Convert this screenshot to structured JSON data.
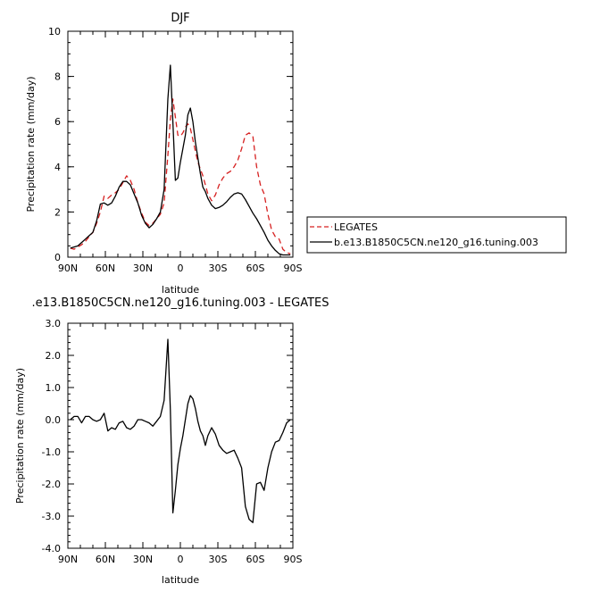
{
  "chart_data": [
    {
      "type": "line",
      "title": "DJF",
      "xlabel": "latitude",
      "ylabel": "Precipitation rate  (mm/day)",
      "xlim": [
        90,
        -90
      ],
      "ylim": [
        0,
        10
      ],
      "x_ticks": [
        90,
        60,
        30,
        0,
        -30,
        -60,
        -90
      ],
      "x_tick_labels": [
        "90N",
        "60N",
        "30N",
        "0",
        "30S",
        "60S",
        "90S"
      ],
      "y_ticks": [
        0,
        2,
        4,
        6,
        8,
        10
      ],
      "y_tick_labels": [
        "0",
        "2",
        "4",
        "6",
        "8",
        "10"
      ],
      "legend": {
        "placement": "right",
        "entries": [
          "LEGATES",
          "b.e13.B1850C5CN.ne120_g16.tuning.003"
        ]
      },
      "series": [
        {
          "name": "LEGATES",
          "color": "#d62020",
          "dash": "dashed",
          "x": [
            88,
            85,
            82,
            79,
            76,
            73,
            70,
            67,
            64,
            61,
            58,
            55,
            52,
            49,
            46,
            43,
            40,
            37,
            34,
            31,
            28,
            25,
            22,
            19,
            16,
            13,
            10,
            8,
            6,
            4,
            2,
            0,
            -2,
            -4,
            -6,
            -8,
            -10,
            -12,
            -14,
            -16,
            -18,
            -20,
            -22,
            -25,
            -28,
            -31,
            -34,
            -37,
            -40,
            -43,
            -46,
            -49,
            -52,
            -55,
            -58,
            -61,
            -64,
            -67,
            -70,
            -73,
            -76,
            -79,
            -82,
            -85,
            -88
          ],
          "y": [
            0.4,
            0.35,
            0.45,
            0.55,
            0.7,
            0.9,
            1.1,
            1.5,
            2.0,
            2.7,
            2.6,
            2.75,
            2.85,
            3.0,
            3.3,
            3.6,
            3.4,
            3.0,
            2.4,
            1.95,
            1.55,
            1.4,
            1.5,
            1.7,
            1.9,
            2.4,
            4.5,
            6.1,
            7.0,
            6.2,
            5.4,
            5.35,
            5.5,
            5.75,
            5.9,
            5.7,
            5.2,
            4.7,
            4.2,
            3.9,
            3.6,
            3.2,
            2.8,
            2.5,
            2.75,
            3.2,
            3.5,
            3.7,
            3.8,
            4.0,
            4.3,
            4.8,
            5.4,
            5.5,
            5.35,
            4.0,
            3.2,
            2.8,
            1.9,
            1.2,
            0.9,
            0.8,
            0.35,
            0.2,
            0.15
          ]
        },
        {
          "name": "b.e13.B1850C5CN.ne120_g16.tuning.003",
          "color": "#000000",
          "dash": "solid",
          "x": [
            88,
            85,
            82,
            79,
            76,
            73,
            70,
            67,
            64,
            61,
            58,
            55,
            52,
            49,
            46,
            43,
            40,
            37,
            34,
            31,
            28,
            25,
            22,
            19,
            16,
            13,
            10,
            8,
            6,
            4,
            2,
            0,
            -2,
            -4,
            -6,
            -8,
            -10,
            -12,
            -14,
            -16,
            -18,
            -20,
            -22,
            -25,
            -28,
            -31,
            -34,
            -37,
            -40,
            -43,
            -46,
            -49,
            -52,
            -55,
            -58,
            -61,
            -64,
            -67,
            -70,
            -73,
            -76,
            -79,
            -82,
            -85,
            -88
          ],
          "y": [
            0.4,
            0.45,
            0.5,
            0.65,
            0.8,
            0.95,
            1.1,
            1.6,
            2.35,
            2.4,
            2.3,
            2.4,
            2.7,
            3.1,
            3.35,
            3.35,
            3.2,
            2.8,
            2.4,
            1.85,
            1.5,
            1.3,
            1.45,
            1.7,
            2.0,
            3.0,
            7.0,
            8.5,
            6.0,
            3.4,
            3.5,
            4.2,
            4.8,
            5.4,
            6.3,
            6.6,
            6.0,
            5.1,
            4.4,
            3.7,
            3.1,
            2.9,
            2.6,
            2.3,
            2.15,
            2.2,
            2.3,
            2.45,
            2.65,
            2.8,
            2.85,
            2.8,
            2.55,
            2.25,
            1.95,
            1.7,
            1.4,
            1.1,
            0.75,
            0.5,
            0.3,
            0.15,
            0.1,
            0.1,
            0.1
          ]
        }
      ]
    },
    {
      "type": "line",
      "title": ".e13.B1850C5CN.ne120_g16.tuning.003  -  LEGATES",
      "xlabel": "latitude",
      "ylabel": "Precipitation rate  (mm/day)",
      "xlim": [
        90,
        -90
      ],
      "ylim": [
        -4,
        3
      ],
      "x_ticks": [
        90,
        60,
        30,
        0,
        -30,
        -60,
        -90
      ],
      "x_tick_labels": [
        "90N",
        "60N",
        "30N",
        "0",
        "30S",
        "60S",
        "90S"
      ],
      "y_ticks": [
        -4,
        -3,
        -2,
        -1,
        0,
        1,
        2,
        3
      ],
      "y_tick_labels": [
        "-4.0",
        "-3.0",
        "-2.0",
        "-1.0",
        "0.0",
        "1.0",
        "2.0",
        "3.0"
      ],
      "series": [
        {
          "color": "#000000",
          "dash": "solid",
          "x": [
            88,
            85,
            82,
            79,
            76,
            73,
            70,
            67,
            64,
            61,
            58,
            55,
            52,
            49,
            46,
            43,
            40,
            37,
            34,
            31,
            28,
            25,
            22,
            19,
            16,
            13,
            10,
            8,
            6,
            4,
            2,
            0,
            -2,
            -4,
            -6,
            -8,
            -10,
            -12,
            -14,
            -16,
            -18,
            -20,
            -22,
            -25,
            -28,
            -31,
            -34,
            -37,
            -40,
            -43,
            -46,
            -49,
            -52,
            -55,
            -58,
            -61,
            -64,
            -67,
            -70,
            -73,
            -76,
            -79,
            -82,
            -85,
            -88
          ],
          "y": [
            0.0,
            0.1,
            0.1,
            -0.1,
            0.1,
            0.1,
            0.0,
            -0.05,
            0.0,
            0.2,
            -0.35,
            -0.25,
            -0.3,
            -0.1,
            -0.05,
            -0.25,
            -0.3,
            -0.2,
            0.0,
            0.0,
            -0.05,
            -0.1,
            -0.2,
            -0.05,
            0.1,
            0.6,
            2.5,
            0.3,
            -2.9,
            -2.2,
            -1.4,
            -0.9,
            -0.5,
            0.0,
            0.5,
            0.75,
            0.65,
            0.35,
            -0.05,
            -0.35,
            -0.5,
            -0.8,
            -0.5,
            -0.25,
            -0.45,
            -0.8,
            -0.95,
            -1.05,
            -1.0,
            -0.95,
            -1.2,
            -1.5,
            -2.7,
            -3.1,
            -3.2,
            -2.0,
            -1.95,
            -2.2,
            -1.5,
            -1.0,
            -0.7,
            -0.65,
            -0.4,
            -0.1,
            0.0
          ]
        }
      ]
    }
  ]
}
